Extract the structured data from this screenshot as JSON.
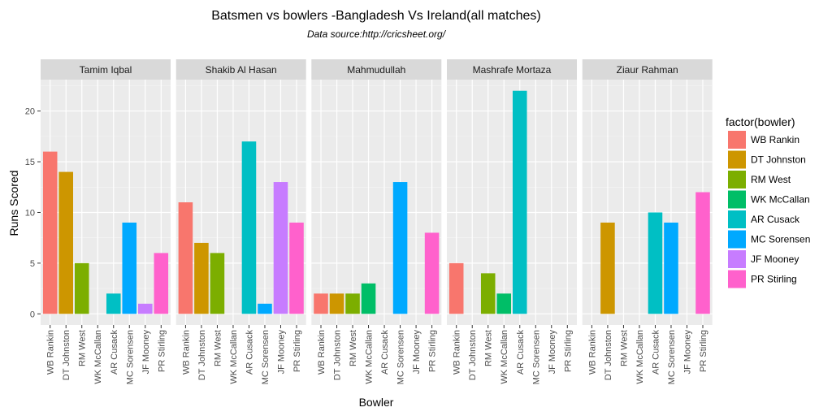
{
  "chart_data": {
    "type": "bar",
    "title": "Batsmen vs bowlers -Bangladesh Vs Ireland(all matches)",
    "subtitle": "Data source:http://cricsheet.org/",
    "xlabel": "Bowler",
    "ylabel": "Runs Scored",
    "ylim": [
      -1.1,
      23.1
    ],
    "yticks": [
      0,
      5,
      10,
      15,
      20
    ],
    "grid": true,
    "legend_title": "factor(bowler)",
    "legend_position": "right",
    "categories": [
      "WB Rankin",
      "DT Johnston",
      "RM West",
      "WK McCallan",
      "AR Cusack",
      "MC Sorensen",
      "JF Mooney",
      "PR Stirling"
    ],
    "colors": [
      "#F8766D",
      "#CD9600",
      "#7CAE00",
      "#00BE67",
      "#00BFC4",
      "#00A9FF",
      "#C77CFF",
      "#FF61CC"
    ],
    "panels": [
      {
        "batsman": "Tamim Iqbal",
        "values": [
          16,
          14,
          5,
          0,
          2,
          9,
          1,
          6
        ]
      },
      {
        "batsman": "Shakib Al Hasan",
        "values": [
          11,
          7,
          6,
          0,
          17,
          1,
          13,
          9
        ]
      },
      {
        "batsman": "Mahmudullah",
        "values": [
          2,
          2,
          2,
          3,
          0,
          13,
          0,
          8
        ]
      },
      {
        "batsman": "Mashrafe Mortaza",
        "values": [
          5,
          0,
          4,
          2,
          22,
          0,
          0,
          0
        ]
      },
      {
        "batsman": "Ziaur Rahman",
        "values": [
          0,
          9,
          0,
          0,
          10,
          9,
          0,
          12
        ]
      }
    ]
  }
}
